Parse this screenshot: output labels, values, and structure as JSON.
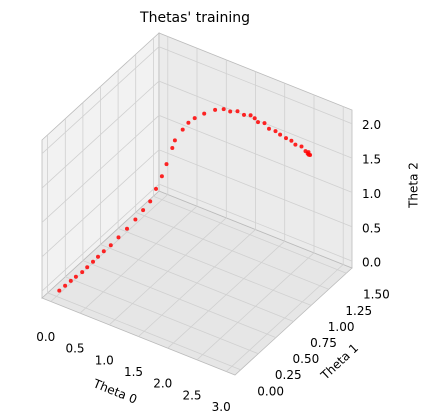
{
  "chart_data": {
    "type": "scatter3d",
    "title": "Thetas' training",
    "xlabel": "Theta 0",
    "ylabel": "Theta 1",
    "zlabel": "Theta 2",
    "color": "#ff0000",
    "grid": true,
    "xlim": [
      -0.15,
      3.15
    ],
    "ylim": [
      -0.08,
      1.58
    ],
    "zlim": [
      -0.1,
      2.2
    ],
    "xticks": [
      {
        "value": 0,
        "label": "0.0"
      },
      0.5,
      {
        "value": 1,
        "label": "1.0"
      },
      1.5,
      {
        "value": 2,
        "label": "2.0"
      },
      2.5,
      {
        "value": 3,
        "label": "3.0"
      }
    ],
    "yticks": [
      {
        "value": 0,
        "label": "0.00"
      },
      0.25,
      {
        "value": 0.5,
        "label": "0.50"
      },
      0.75,
      {
        "value": 1,
        "label": "1.00"
      },
      1.25,
      {
        "value": 1.5,
        "label": "1.50"
      }
    ],
    "zticks": [
      {
        "value": 0,
        "label": "0.0"
      },
      0.5,
      {
        "value": 1,
        "label": "1.0"
      },
      1.5,
      {
        "value": 2,
        "label": "2.0"
      }
    ],
    "x": [
      0.05,
      0.1,
      0.15,
      0.2,
      0.26,
      0.31,
      0.36,
      0.41,
      0.46,
      0.52,
      0.58,
      0.64,
      0.7,
      0.76,
      0.82,
      0.86,
      0.9,
      0.93,
      0.97,
      0.99,
      1.05,
      1.1,
      1.16,
      1.25,
      1.34,
      1.45,
      1.55,
      1.65,
      1.75,
      1.85,
      1.92,
      2.0,
      2.1,
      2.2,
      2.3,
      2.39,
      2.48,
      2.56,
      2.64,
      2.72,
      2.8,
      2.85,
      2.88,
      2.84,
      2.87
    ],
    "y": [
      0.0,
      0.04,
      0.08,
      0.11,
      0.15,
      0.18,
      0.22,
      0.25,
      0.29,
      0.34,
      0.4,
      0.47,
      0.54,
      0.6,
      0.65,
      0.7,
      0.75,
      0.79,
      0.84,
      0.86,
      0.92,
      0.96,
      1.0,
      1.06,
      1.14,
      1.17,
      1.18,
      1.2,
      1.21,
      1.22,
      1.22,
      1.2,
      1.21,
      1.19,
      1.2,
      1.19,
      1.2,
      1.21,
      1.2,
      1.22,
      1.21,
      1.2,
      1.21,
      1.22,
      1.2
    ],
    "z": [
      0.0,
      0.05,
      0.1,
      0.15,
      0.2,
      0.26,
      0.32,
      0.38,
      0.44,
      0.5,
      0.58,
      0.66,
      0.75,
      0.85,
      0.95,
      1.1,
      1.25,
      1.4,
      1.6,
      1.7,
      1.82,
      1.9,
      1.95,
      1.99,
      2.0,
      2.02,
      2.01,
      2.03,
      2.0,
      2.02,
      2.0,
      1.99,
      2.0,
      1.97,
      1.96,
      1.95,
      1.92,
      1.9,
      1.88,
      1.86,
      1.83,
      1.82,
      1.8,
      1.82,
      1.81
    ]
  }
}
